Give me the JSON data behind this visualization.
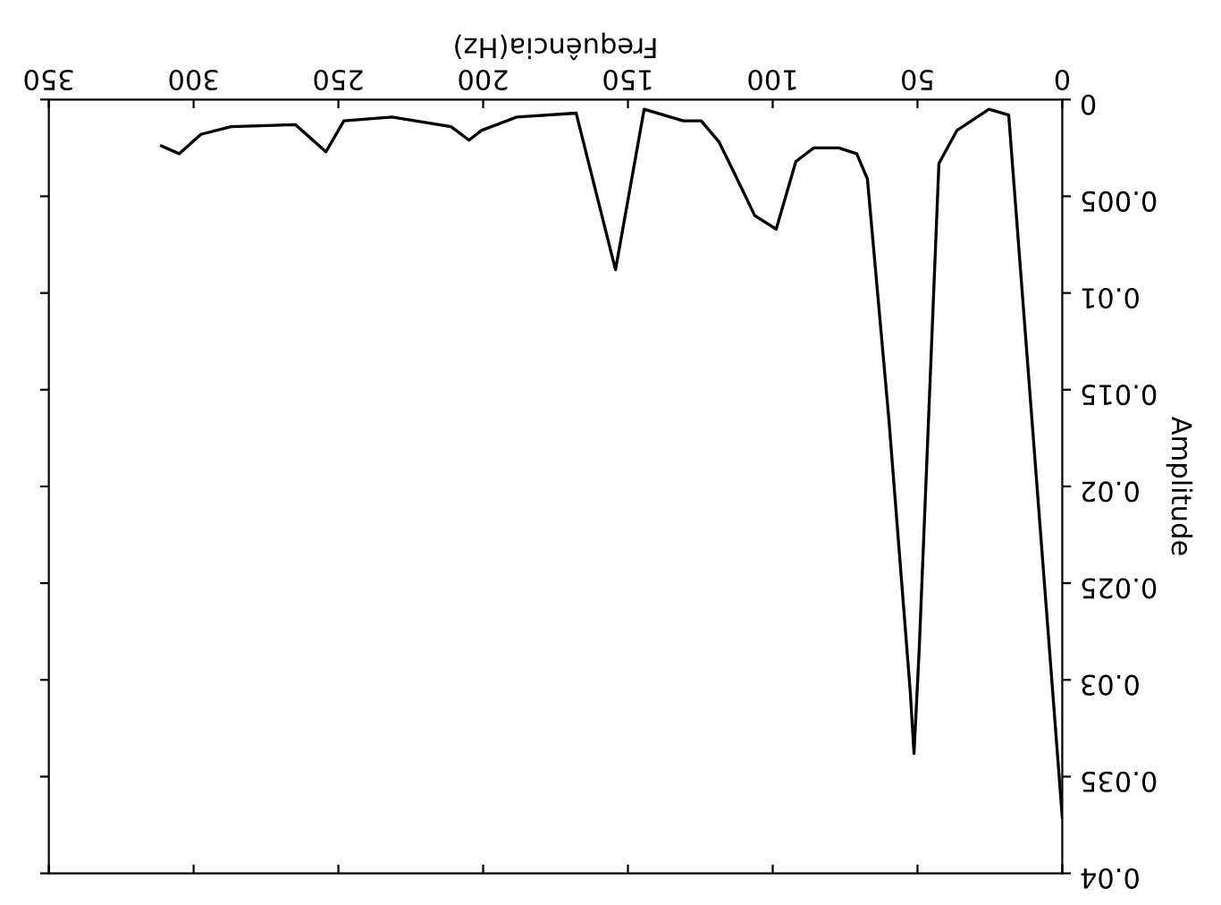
{
  "chart_data": {
    "type": "line",
    "xlabel": "Frequência(Hz)",
    "ylabel": "Amplitude",
    "x": [
      0,
      10.5,
      18.5,
      25.3,
      36.4,
      42.6,
      49.4,
      51.2,
      52.5,
      59.9,
      67.3,
      71.0,
      77.2,
      85.8,
      92.0,
      98.8,
      106.2,
      112.3,
      118.5,
      124.7,
      130.9,
      144.4,
      154.3,
      167.9,
      188.3,
      200.6,
      204.9,
      211.1,
      231.5,
      248.1,
      254.3,
      264.8,
      287.0,
      297.5,
      305.0,
      311.1
    ],
    "series": [
      {
        "color": "#000000",
        "values": [
          0.0371,
          0.0165,
          0.0008,
          0.0005,
          0.0016,
          0.0033,
          0.0284,
          0.0338,
          0.0306,
          0.0165,
          0.0041,
          0.0028,
          0.0025,
          0.0025,
          0.0032,
          0.0067,
          0.006,
          0.0041,
          0.0022,
          0.0011,
          0.0011,
          0.0005,
          0.0088,
          0.0007,
          0.0009,
          0.0016,
          0.0021,
          0.0014,
          0.0009,
          0.0011,
          0.0027,
          0.0013,
          0.0014,
          0.0018,
          0.0028,
          0.0024
        ]
      }
    ],
    "xlim": [
      350,
      0
    ],
    "ylim": [
      0.04,
      0
    ],
    "xticks": [
      0,
      50,
      100,
      150,
      200,
      250,
      300,
      350
    ],
    "yticks": [
      0,
      0.005,
      0.01,
      0.015,
      0.02,
      0.025,
      0.03,
      0.035,
      0.04
    ],
    "grid": false,
    "legend": false,
    "marker": "none",
    "line_style": "solid"
  }
}
